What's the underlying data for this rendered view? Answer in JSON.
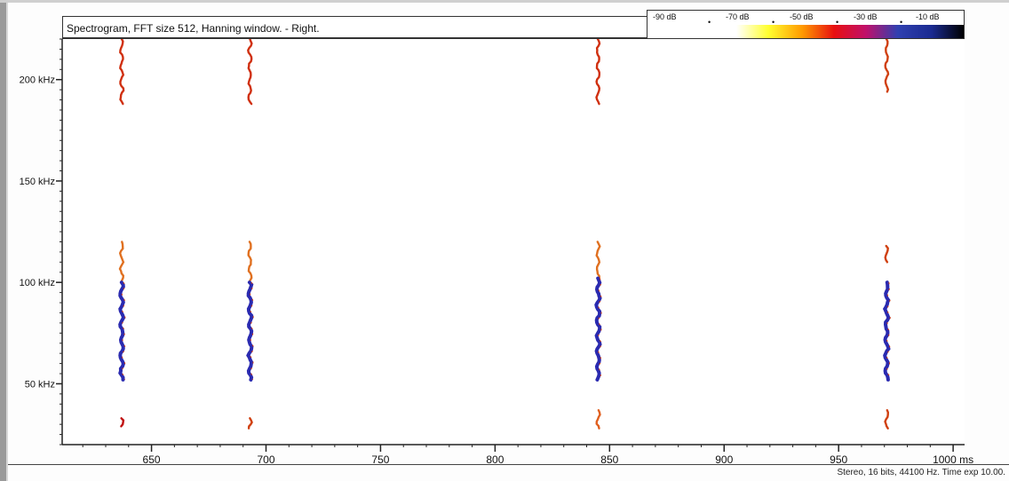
{
  "chart_data": {
    "type": "heatmap",
    "title": "Spectrogram, FFT size 512, Hanning window. - Right.",
    "x_ticks": [
      {
        "value": 650,
        "label": "650"
      },
      {
        "value": 700,
        "label": "700"
      },
      {
        "value": 750,
        "label": "750"
      },
      {
        "value": 800,
        "label": "800"
      },
      {
        "value": 850,
        "label": "850"
      },
      {
        "value": 900,
        "label": "900"
      },
      {
        "value": 950,
        "label": "950"
      },
      {
        "value": 1000,
        "label": "1000 ms"
      }
    ],
    "y_ticks": [
      {
        "value": 50,
        "label": "50 kHz"
      },
      {
        "value": 100,
        "label": "100 kHz"
      },
      {
        "value": 150,
        "label": "150 kHz"
      },
      {
        "value": 200,
        "label": "200 kHz"
      }
    ],
    "xlim": [
      611,
      1005
    ],
    "ylim": [
      20,
      220
    ],
    "color_scale": {
      "labels": [
        "-90 dB",
        "-70 dB",
        "-50 dB",
        "-30 dB",
        "-10 dB"
      ],
      "colors": [
        "#ffffff",
        "#ffff30",
        "#ff9a00",
        "#e81010",
        "#c0106a",
        "#3040b0",
        "#1a2a90",
        "#000000"
      ]
    },
    "calls": [
      {
        "time_ms": 637,
        "segments": [
          {
            "f_top": 220,
            "f_bot": 188,
            "color": "#d03010"
          },
          {
            "f_top": 120,
            "f_bot": 100,
            "color": "#e07020"
          },
          {
            "f_top": 100,
            "f_bot": 52,
            "color": "#2a2ab0"
          },
          {
            "f_top": 33,
            "f_bot": 29,
            "color": "#c01010"
          }
        ]
      },
      {
        "time_ms": 693,
        "segments": [
          {
            "f_top": 220,
            "f_bot": 188,
            "color": "#d03010"
          },
          {
            "f_top": 120,
            "f_bot": 100,
            "color": "#e07020"
          },
          {
            "f_top": 100,
            "f_bot": 52,
            "color": "#2a2ab0"
          },
          {
            "f_top": 33,
            "f_bot": 28,
            "color": "#d04010"
          }
        ]
      },
      {
        "time_ms": 845,
        "segments": [
          {
            "f_top": 220,
            "f_bot": 188,
            "color": "#d03010"
          },
          {
            "f_top": 120,
            "f_bot": 102,
            "color": "#e07020"
          },
          {
            "f_top": 102,
            "f_bot": 52,
            "color": "#2a2ab0"
          },
          {
            "f_top": 37,
            "f_bot": 28,
            "color": "#e06020"
          }
        ]
      },
      {
        "time_ms": 971,
        "segments": [
          {
            "f_top": 220,
            "f_bot": 194,
            "color": "#d04010"
          },
          {
            "f_top": 118,
            "f_bot": 110,
            "color": "#d04010"
          },
          {
            "f_top": 100,
            "f_bot": 52,
            "color": "#2a2ab0"
          },
          {
            "f_top": 37,
            "f_bot": 28,
            "color": "#d04010"
          }
        ]
      }
    ]
  },
  "status": {
    "text": "Stereo, 16 bits, 44100 Hz. Time exp 10.00."
  }
}
